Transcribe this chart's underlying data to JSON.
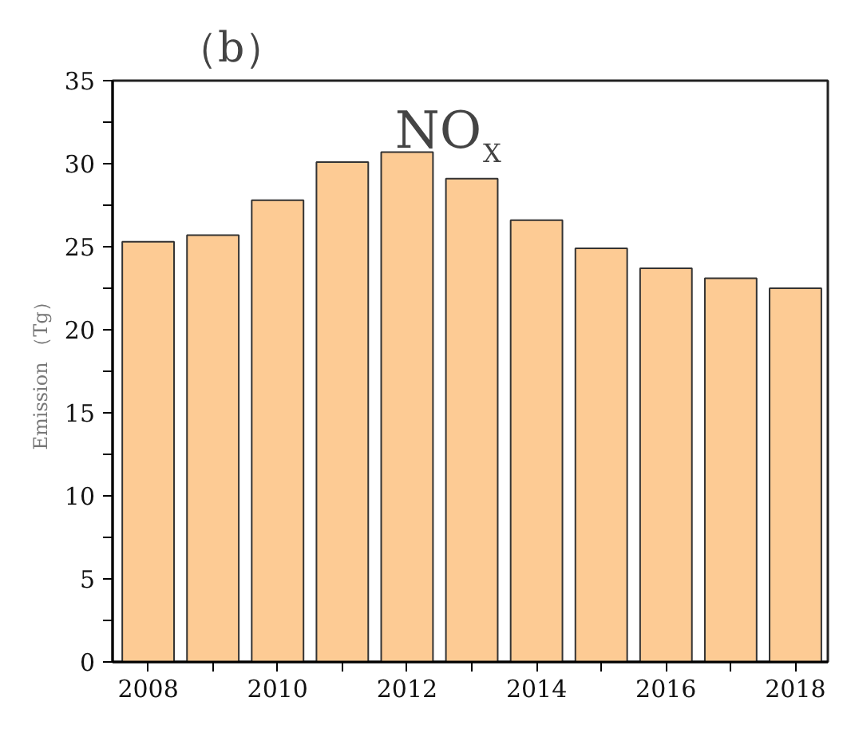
{
  "chart_data": {
    "type": "bar",
    "title": "（b）",
    "ylabel": "Emission （Tg）",
    "annotations": [
      "NO$_{X}$"
    ],
    "x": [
      2008,
      2009,
      2010,
      2011,
      2012,
      2013,
      2014,
      2015,
      2016,
      2017,
      2018
    ],
    "values": [
      25.3,
      25.7,
      27.8,
      30.1,
      30.7,
      29.1,
      26.6,
      24.9,
      23.7,
      23.1,
      22.5
    ],
    "color": "#fdcb94",
    "xlim": [
      2007.45,
      2018.5
    ],
    "xticks": [
      2008,
      {
        "value": 2009,
        "label": null
      },
      2010,
      {
        "value": 2011,
        "label": null
      },
      2012,
      {
        "value": 2013,
        "label": null
      },
      2014,
      {
        "value": 2015,
        "label": null
      },
      2016,
      {
        "value": 2017,
        "label": null
      },
      2018
    ],
    "ylim": [
      0,
      35
    ],
    "yticks": [
      0,
      {
        "value": 2.5,
        "label": null
      },
      5,
      {
        "value": 7.5,
        "label": null
      },
      10,
      {
        "value": 12.5,
        "label": null
      },
      15,
      {
        "value": 17.5,
        "label": null
      },
      20,
      {
        "value": 22.5,
        "label": null
      },
      25,
      {
        "value": 27.5,
        "label": null
      },
      30,
      {
        "value": 32.5,
        "label": null
      },
      35
    ],
    "grid": false
  }
}
